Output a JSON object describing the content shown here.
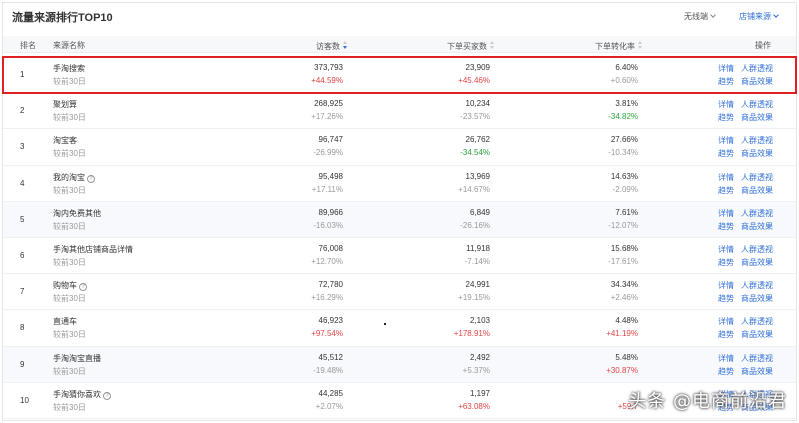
{
  "header": {
    "title": "流量来源排行TOP10",
    "device_filter": "无线端",
    "store_source": "店铺来源"
  },
  "columns": {
    "rank": "排名",
    "source": "来源名称",
    "visitors": "访客数",
    "buyers": "下单买家数",
    "conversion": "下单转化率",
    "ops": "操作"
  },
  "actions": {
    "detail": "详情",
    "crowd": "人群透视",
    "trend": "趋势",
    "product": "商品效果"
  },
  "rows": [
    {
      "rank": "1",
      "name": "手淘搜索",
      "sub": "较前30日",
      "visitors": "373,793",
      "visitors_chg": "+44.59%",
      "buyers": "23,909",
      "buyers_chg": "+45.46%",
      "conv": "6.40%",
      "conv_chg": "+0.60%"
    },
    {
      "rank": "2",
      "name": "聚划算",
      "sub": "较前30日",
      "visitors": "268,925",
      "visitors_chg": "+17.26%",
      "buyers": "10,234",
      "buyers_chg": "-23.57%",
      "conv": "3.81%",
      "conv_chg": "-34.82%"
    },
    {
      "rank": "3",
      "name": "淘宝客",
      "sub": "较前30日",
      "visitors": "96,747",
      "visitors_chg": "-26.99%",
      "buyers": "26,762",
      "buyers_chg": "-34.54%",
      "conv": "27.66%",
      "conv_chg": "-10.34%"
    },
    {
      "rank": "4",
      "name": "我的淘宝",
      "sub": "较前30日",
      "visitors": "95,498",
      "visitors_chg": "+17.11%",
      "buyers": "13,969",
      "buyers_chg": "+14.67%",
      "conv": "14.63%",
      "conv_chg": "-2.09%"
    },
    {
      "rank": "5",
      "name": "淘内免费其他",
      "sub": "较前30日",
      "visitors": "89,966",
      "visitors_chg": "-16.03%",
      "buyers": "6,849",
      "buyers_chg": "-26.16%",
      "conv": "7.61%",
      "conv_chg": "-12.07%"
    },
    {
      "rank": "6",
      "name": "手淘其他店铺商品详情",
      "sub": "较前30日",
      "visitors": "76,008",
      "visitors_chg": "+12.70%",
      "buyers": "11,918",
      "buyers_chg": "-7.14%",
      "conv": "15.68%",
      "conv_chg": "-17.61%"
    },
    {
      "rank": "7",
      "name": "购物车",
      "sub": "较前30日",
      "visitors": "72,780",
      "visitors_chg": "+16.29%",
      "buyers": "24,991",
      "buyers_chg": "+19.15%",
      "conv": "34.34%",
      "conv_chg": "+2.46%"
    },
    {
      "rank": "8",
      "name": "直通车",
      "sub": "较前30日",
      "visitors": "46,923",
      "visitors_chg": "+97.54%",
      "buyers": "2,103",
      "buyers_chg": "+178.91%",
      "conv": "4.48%",
      "conv_chg": "+41.19%"
    },
    {
      "rank": "9",
      "name": "手淘淘宝直播",
      "sub": "较前30日",
      "visitors": "45,512",
      "visitors_chg": "-19.48%",
      "buyers": "2,492",
      "buyers_chg": "+5.37%",
      "conv": "5.48%",
      "conv_chg": "+30.87%"
    },
    {
      "rank": "10",
      "name": "手淘猜你喜欢",
      "sub": "较前30日",
      "visitors": "44,285",
      "visitors_chg": "+2.07%",
      "buyers": "1,197",
      "buyers_chg": "+63.08%",
      "conv": "",
      "conv_chg": "+59.7"
    }
  ],
  "watermark": "头条 @电商前沿君",
  "colors": {
    "link": "#2f6fd8",
    "positive_highlight": "#e34545",
    "negative_highlight": "#2aa53d",
    "highlight_border": "#e02020"
  }
}
